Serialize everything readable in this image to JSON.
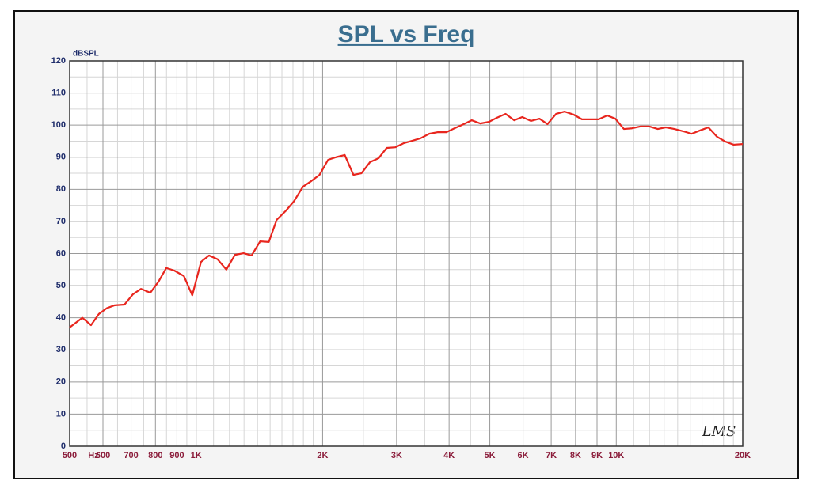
{
  "chart_data": {
    "type": "line",
    "title": "SPL vs Freq",
    "ylabel": "dBSPL",
    "xlabel": "Hz",
    "logo": "LMS",
    "xscale": "log",
    "grid": true,
    "xlim": [
      500,
      20000
    ],
    "ylim": [
      0,
      120
    ],
    "yticks": [
      0,
      10,
      20,
      30,
      40,
      50,
      60,
      70,
      80,
      90,
      100,
      110,
      120
    ],
    "minor_yticks": [
      5,
      15,
      25,
      35,
      45,
      55,
      65,
      75,
      85,
      95,
      105,
      115
    ],
    "xticks": [
      500,
      600,
      700,
      800,
      900,
      {
        "value": 1000,
        "label": "1K"
      },
      {
        "value": 2000,
        "label": "2K"
      },
      {
        "value": 3000,
        "label": "3K"
      },
      {
        "value": 4000,
        "label": "4K"
      },
      {
        "value": 5000,
        "label": "5K"
      },
      {
        "value": 6000,
        "label": "6K"
      },
      {
        "value": 7000,
        "label": "7K"
      },
      {
        "value": 8000,
        "label": "8K"
      },
      {
        "value": 9000,
        "label": "9K"
      },
      {
        "value": 10000,
        "label": "10K"
      },
      {
        "value": 20000,
        "label": "20K"
      }
    ],
    "minor_xticks": [
      550,
      650,
      750,
      850,
      950,
      1100,
      1200,
      1300,
      1400,
      1500,
      1600,
      1700,
      1800,
      1900,
      2500,
      3500,
      4500,
      11000,
      12000,
      13000,
      14000,
      15000,
      16000,
      17000,
      18000,
      19000
    ],
    "x": [
      500,
      536,
      562,
      587,
      613,
      640,
      675,
      707,
      739,
      778,
      814,
      849,
      887,
      935,
      979,
      1027,
      1073,
      1125,
      1180,
      1237,
      1297,
      1355,
      1420,
      1489,
      1555,
      1637,
      1712,
      1795,
      1881,
      1966,
      2061,
      2152,
      2258,
      2368,
      2474,
      2594,
      2719,
      2842,
      2980,
      3124,
      3264,
      3422,
      3587,
      3761,
      3942,
      4133,
      4332,
      4527,
      4746,
      4975,
      5200,
      5452,
      5716,
      5973,
      6262,
      6564,
      6860,
      7192,
      7539,
      7904,
      8286,
      8686,
      9078,
      9516,
      9946,
      10426,
      10896,
      11423,
      11975,
      12553,
      13120,
      13755,
      14420,
      15116,
      15798,
      16562,
      17362,
      18146,
      19024,
      20000
    ],
    "series": [
      {
        "name": "SPL",
        "color": "#e8261e",
        "values": [
          37,
          40,
          37.7,
          41.2,
          43,
          43.9,
          44.1,
          47.3,
          49,
          47.8,
          51.3,
          55.5,
          54.7,
          53,
          47,
          57.4,
          59.4,
          58.2,
          55,
          59.6,
          60.1,
          59.4,
          63.8,
          63.6,
          70.5,
          73.4,
          76.4,
          80.8,
          82.6,
          84.5,
          89.2,
          90,
          90.7,
          84.5,
          85,
          88.5,
          89.7,
          92.9,
          93.1,
          94.4,
          95.1,
          95.9,
          97.3,
          97.8,
          97.8,
          99.1,
          100.3,
          101.5,
          100.5,
          101,
          102.3,
          103.5,
          101.5,
          102.5,
          101.3,
          102,
          100.3,
          103.5,
          104.2,
          103.3,
          101.8,
          101.8,
          101.8,
          103,
          102,
          98.8,
          99,
          99.6,
          99.6,
          98.8,
          99.3,
          98.8,
          98.1,
          97.3,
          98.3,
          99.3,
          96.4,
          94.9,
          93.9,
          94.1
        ]
      }
    ]
  }
}
